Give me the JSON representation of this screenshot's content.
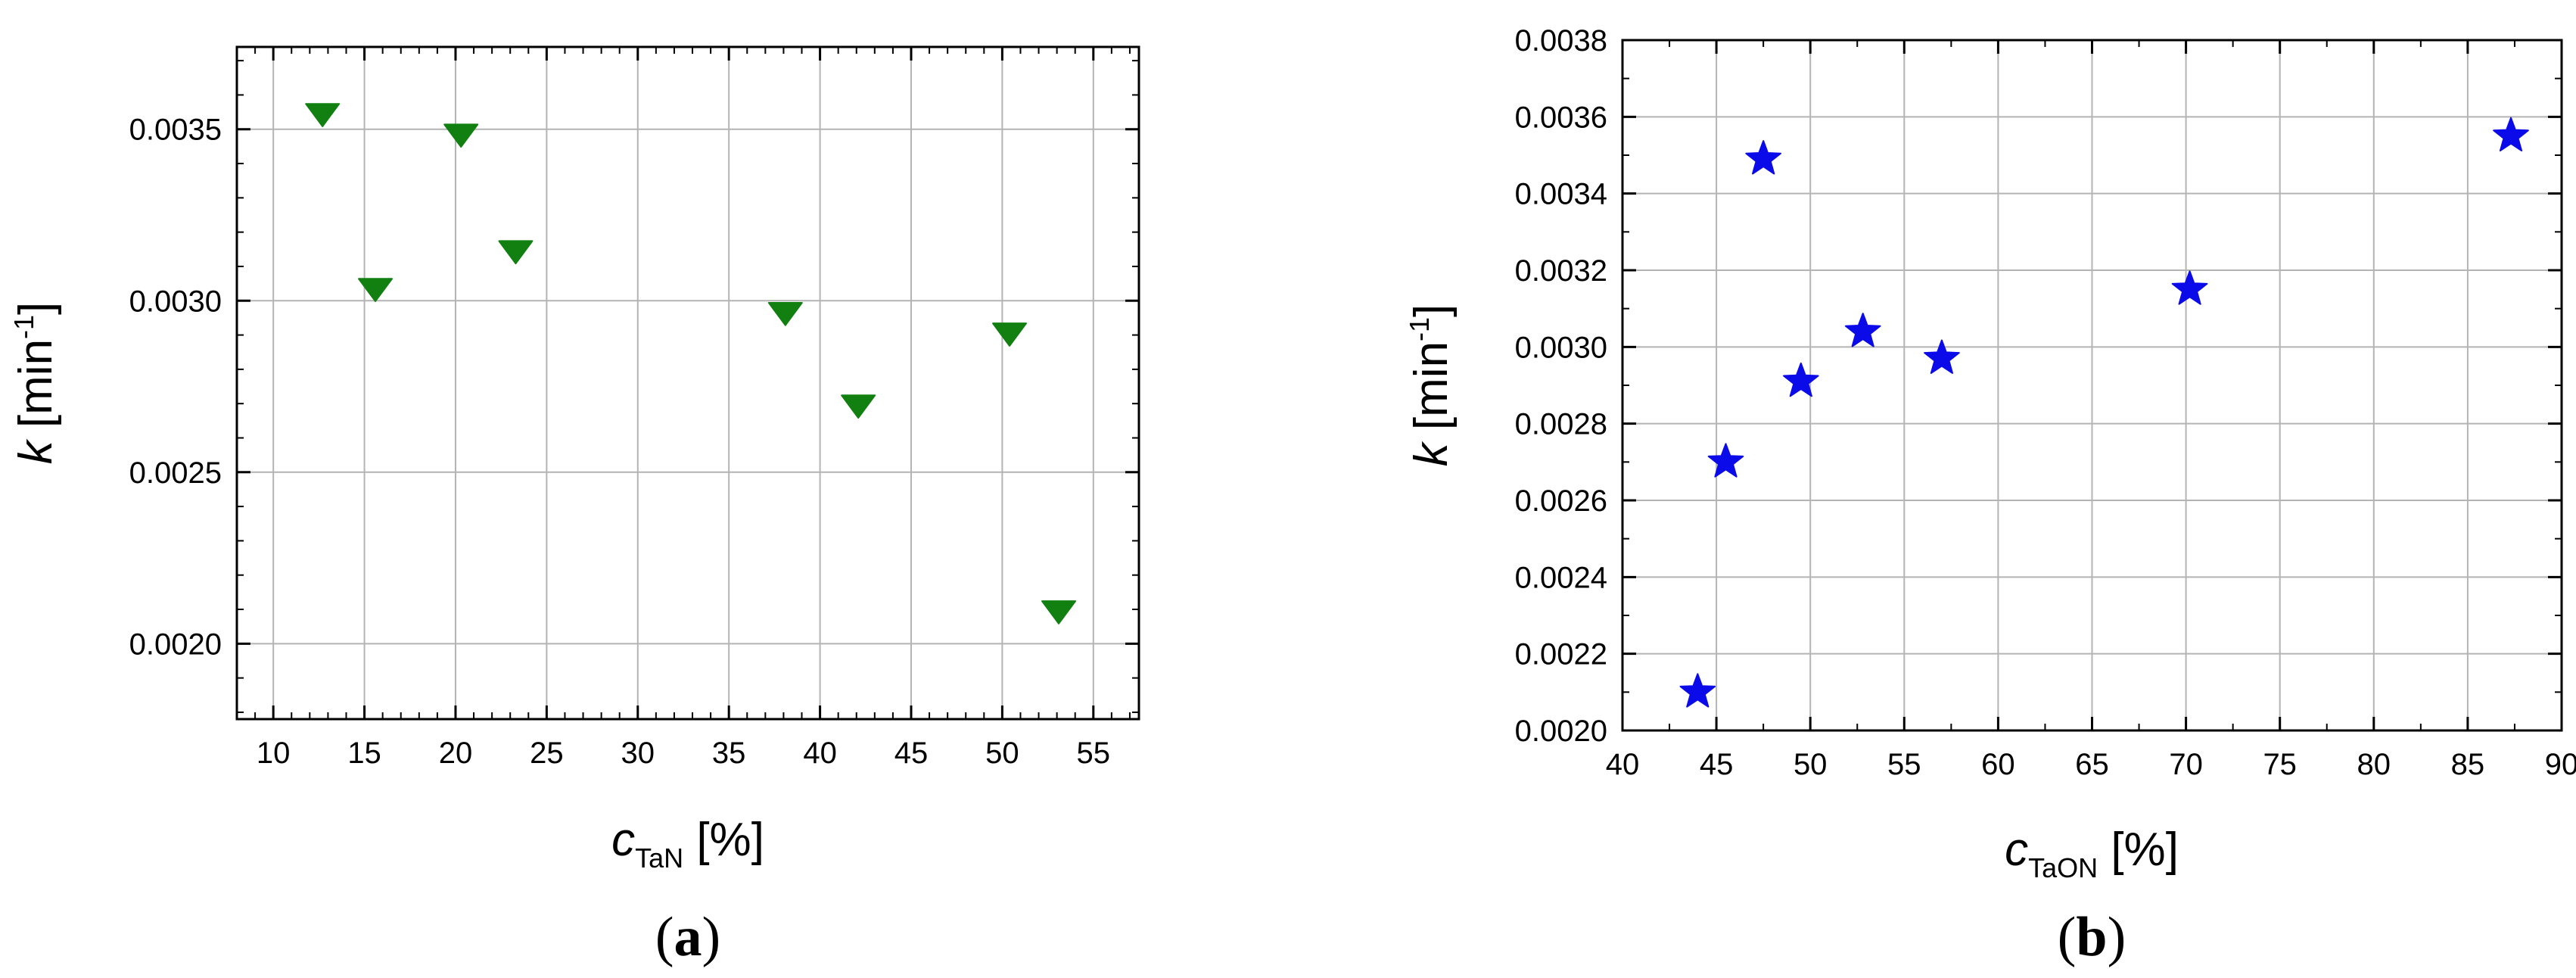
{
  "chart_data": [
    {
      "type": "scatter",
      "panel_label": "(a)",
      "panel_letter": "a",
      "xlabel": {
        "symbol": "c",
        "subscript": "TaN",
        "unit": "[%]"
      },
      "ylabel": {
        "symbol": "k",
        "unit": "[min",
        "superscript": "-1",
        "unit_close": "]"
      },
      "xlim": [
        8,
        57.5
      ],
      "ylim": [
        0.00178,
        0.00374
      ],
      "xticks": [
        "10",
        "15",
        "20",
        "25",
        "30",
        "35",
        "40",
        "45",
        "50",
        "55"
      ],
      "yticks": [
        "0.0020",
        "0.0025",
        "0.0030",
        "0.0035"
      ],
      "grid": true,
      "marker": "triangle-down",
      "color": "#118011",
      "points": [
        {
          "x": 12.7,
          "y": 0.00355
        },
        {
          "x": 15.6,
          "y": 0.00304
        },
        {
          "x": 20.3,
          "y": 0.00349
        },
        {
          "x": 23.3,
          "y": 0.00315
        },
        {
          "x": 38.1,
          "y": 0.00297
        },
        {
          "x": 42.1,
          "y": 0.0027
        },
        {
          "x": 50.4,
          "y": 0.00291
        },
        {
          "x": 53.1,
          "y": 0.0021
        }
      ]
    },
    {
      "type": "scatter",
      "panel_label": "(b)",
      "panel_letter": "b",
      "xlabel": {
        "symbol": "c",
        "subscript": "TaON",
        "unit": "[%]"
      },
      "ylabel": {
        "symbol": "k",
        "unit": "[min",
        "superscript": "-1",
        "unit_close": "]"
      },
      "xlim": [
        40,
        90
      ],
      "ylim": [
        0.002,
        0.0038
      ],
      "xticks": [
        "40",
        "45",
        "50",
        "55",
        "60",
        "65",
        "70",
        "75",
        "80",
        "85",
        "90"
      ],
      "yticks": [
        "0.0020",
        "0.0022",
        "0.0024",
        "0.0026",
        "0.0028",
        "0.0030",
        "0.0032",
        "0.0034",
        "0.0036",
        "0.0038"
      ],
      "grid": true,
      "marker": "star",
      "color": "#0b0bea",
      "points": [
        {
          "x": 44.0,
          "y": 0.0021
        },
        {
          "x": 45.5,
          "y": 0.0027
        },
        {
          "x": 47.5,
          "y": 0.00349
        },
        {
          "x": 49.5,
          "y": 0.00291
        },
        {
          "x": 52.8,
          "y": 0.00304
        },
        {
          "x": 57.0,
          "y": 0.00297
        },
        {
          "x": 70.2,
          "y": 0.00315
        },
        {
          "x": 87.3,
          "y": 0.00355
        }
      ]
    }
  ]
}
